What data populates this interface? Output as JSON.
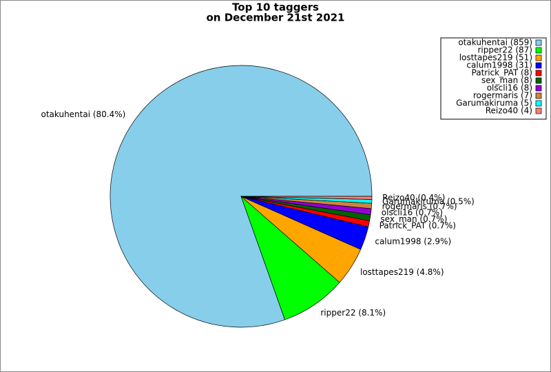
{
  "chart_data": {
    "type": "pie",
    "title": "Top 10 taggers",
    "subtitle": "on December 21st 2021",
    "categories": [
      "otakuhentai (859)",
      "ripper22 (87)",
      "losttapes219 (51)",
      "calum1998 (31)",
      "Patrick_PAT (8)",
      "sex_man (8)",
      "olscli16 (8)",
      "rogermaris (7)",
      "Garumakiruma (5)",
      "Reizo40 (4)"
    ],
    "values": [
      859,
      87,
      51,
      31,
      8,
      8,
      8,
      7,
      5,
      4
    ],
    "value_labels": [
      "otakuhentai (80.4%)",
      "ripper22 (8.1%)",
      "losttapes219 (4.8%)",
      "calum1998 (2.9%)",
      "Patrick_PAT (0.7%)",
      "sex_man (0.7%)",
      "olscli16 (0.7%)",
      "rogermaris (0.7%)",
      "Garumakiruma (0.5%)",
      "Reizo40 (0.4%)"
    ],
    "colors": [
      "#87ceeb",
      "#00ff00",
      "#ffa500",
      "#0000ff",
      "#ff0000",
      "#006400",
      "#9400d3",
      "#cd853f",
      "#00ffff",
      "#fa8072"
    ],
    "legend": "upper right"
  }
}
